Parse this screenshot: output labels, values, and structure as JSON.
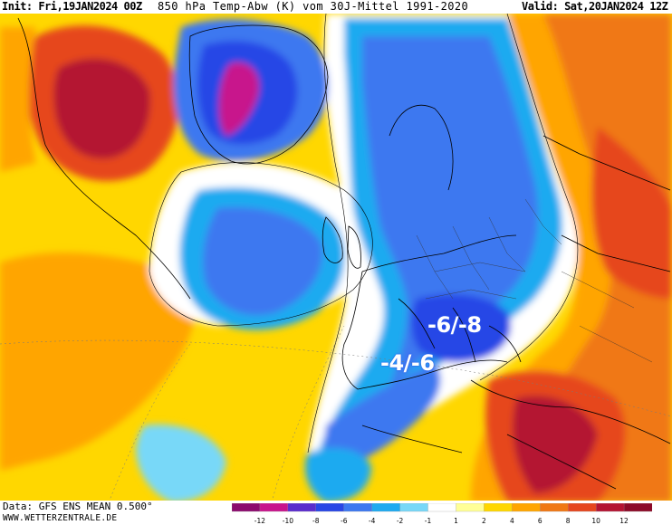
{
  "header": {
    "init": "Init: Fri,19JAN2024 00Z",
    "title": "850 hPa Temp-Abw (K) vom 30J-Mittel 1991-2020",
    "valid": "Valid: Sat,20JAN2024 12Z"
  },
  "annotations": {
    "north": "-6/-8",
    "south": "-4/-6"
  },
  "footer": {
    "source": "Data: GFS ENS MEAN 0.500°",
    "website": "WWW.WETTERZENTRALE.DE"
  },
  "legend": {
    "ticks": [
      "-12",
      "-10",
      "-8",
      "-6",
      "-4",
      "-2",
      "-1",
      "1",
      "2",
      "4",
      "6",
      "8",
      "10",
      "12"
    ],
    "colors": [
      "#8c0a6e",
      "#c8148c",
      "#5a2ccd",
      "#2846e6",
      "#3c78f0",
      "#1eaaf0",
      "#78d8f8",
      "#ffffff",
      "#ffff96",
      "#ffd700",
      "#ffa500",
      "#f07814",
      "#e6461e",
      "#b41432",
      "#8c0a28"
    ]
  },
  "colors": {
    "warm_far": "#b41432",
    "warm_strong": "#e6461e",
    "warm": "#f07814",
    "warm_mid": "#ffa500",
    "warm_light": "#ffd700",
    "neutral": "#ffffff",
    "cold_light": "#1eaaf0",
    "cold": "#3c78f0",
    "cold_strong": "#2846e6",
    "cold_far": "#c8148c",
    "annotation_text": "#ffffff",
    "coastline": "#000000"
  }
}
